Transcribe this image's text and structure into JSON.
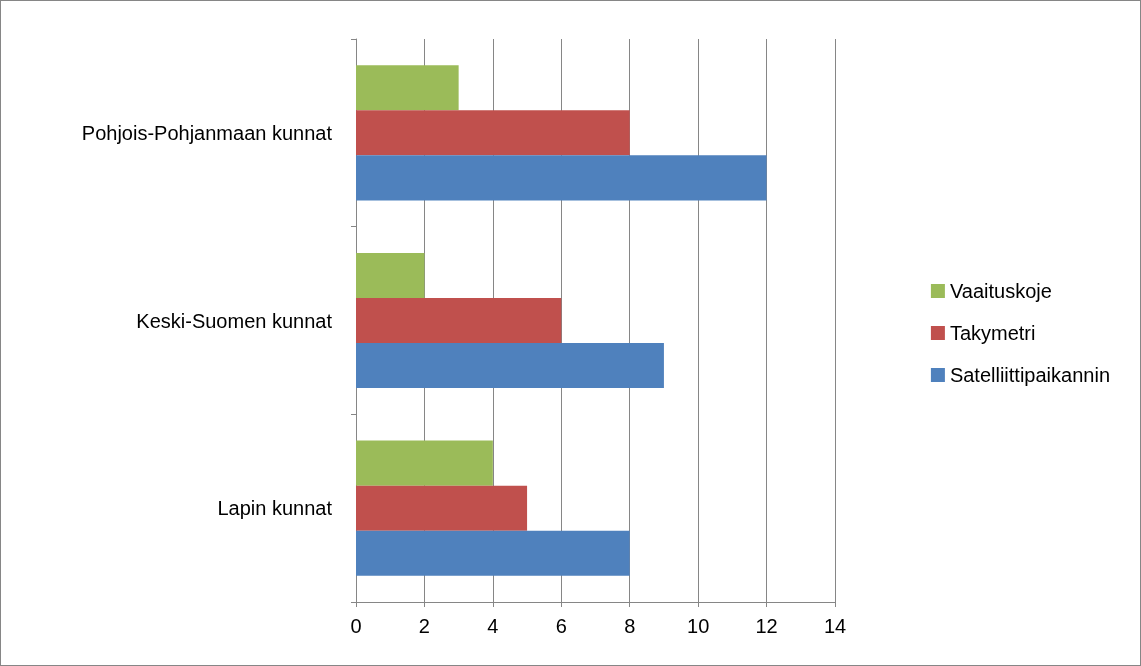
{
  "chart_data": {
    "type": "bar",
    "orientation": "horizontal",
    "categories": [
      "Pohjois-Pohjanmaan kunnat",
      "Keski-Suomen kunnat",
      "Lapin kunnat"
    ],
    "series": [
      {
        "name": "Vaaituskoje",
        "color": "#9bbb59",
        "values": [
          3,
          2,
          4
        ]
      },
      {
        "name": "Takymetri",
        "color": "#c0504d",
        "values": [
          8,
          6,
          5
        ]
      },
      {
        "name": "Satelliittipaikannin",
        "color": "#4f81bd",
        "values": [
          12,
          9,
          8
        ]
      }
    ],
    "xlim": [
      0,
      14
    ],
    "xticks": [
      0,
      2,
      4,
      6,
      8,
      10,
      12,
      14
    ],
    "grid": "x",
    "legend": "right"
  }
}
